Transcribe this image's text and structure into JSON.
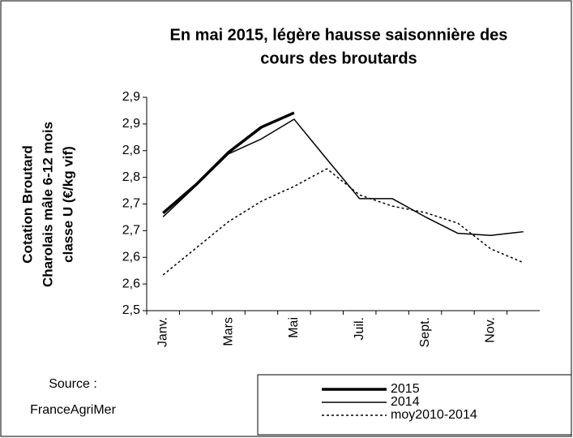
{
  "chart_data": {
    "type": "line",
    "title": [
      "En mai 2015, légère hausse saisonnière des",
      "cours des broutards"
    ],
    "y_label": [
      "Cotation Broutard",
      "Charolais mâle 6-12 mois",
      "classe U  (€/kg vif)"
    ],
    "source": [
      "Source :",
      "FranceAgriMer"
    ],
    "categories": [
      "Janv.",
      null,
      "Mars",
      null,
      "Mai",
      null,
      "Juil.",
      null,
      "Sept.",
      null,
      "Nov.",
      null
    ],
    "series": [
      {
        "name": "2015",
        "color": "#000000",
        "style": "bold",
        "values": [
          2.683,
          2.736,
          2.797,
          2.844,
          2.871,
          null,
          null,
          null,
          null,
          null,
          null,
          null
        ]
      },
      {
        "name": "2014",
        "color": "#000000",
        "style": "solid",
        "values": [
          2.676,
          2.734,
          2.794,
          2.822,
          2.859,
          2.784,
          2.71,
          2.71,
          2.676,
          2.645,
          2.641,
          2.648
        ]
      },
      {
        "name": "moy2010-2014",
        "color": "#000000",
        "style": "dotted",
        "values": [
          2.567,
          2.617,
          2.667,
          2.705,
          2.733,
          2.766,
          2.717,
          2.696,
          2.684,
          2.664,
          2.616,
          2.59
        ]
      }
    ],
    "ylim": [
      2.5,
      2.9
    ],
    "yticks": [
      {
        "value": 2.5,
        "label": "2,5"
      },
      {
        "value": 2.55,
        "label": "2,6"
      },
      {
        "value": 2.6,
        "label": "2,6"
      },
      {
        "value": 2.65,
        "label": "2,7"
      },
      {
        "value": 2.7,
        "label": "2,7"
      },
      {
        "value": 2.75,
        "label": "2,8"
      },
      {
        "value": 2.8,
        "label": "2,8"
      },
      {
        "value": 2.85,
        "label": "2,9"
      },
      {
        "value": 2.9,
        "label": "2,9"
      }
    ],
    "grid": false
  }
}
